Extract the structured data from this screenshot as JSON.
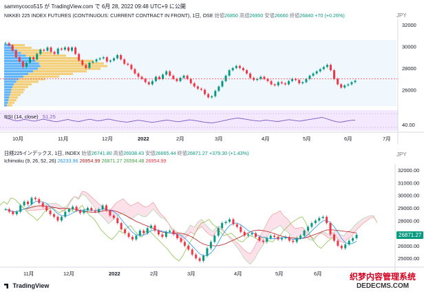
{
  "top_caption": "sammycoco515 が TradingView.com で 6月 28, 2022 09:48 UTC+9 に公開",
  "chart1": {
    "title": "NIKKEI 225 INDEX FUTURES (CONTINUOUS: CURRENT CONTRACT IN FRONT), 1日, OSE",
    "ohlc": {
      "o_label": "始値",
      "o": "26850",
      "h_label": "高値",
      "h": "26950",
      "l_label": "安値",
      "l": "26660",
      "c_label": "終値",
      "c": "26840",
      "chg": "+70 (+0.26%)"
    },
    "currency": "JPY",
    "yticks": [
      "32000",
      "30000",
      "28000",
      "26000"
    ],
    "ylim": [
      24500,
      32500
    ],
    "dotted_level": 27000,
    "rsi_label": "RSI (14, close)",
    "rsi_value": "51.25",
    "rsi_tick": "40.00",
    "xticks": [
      "10月",
      "11月",
      "12月",
      "2022",
      "2月",
      "3月",
      "4月",
      "5月",
      "6月",
      "7月"
    ]
  },
  "chart2": {
    "title": "日経225インデックス, 1日, INDEX",
    "ohlc": {
      "o_label": "始値",
      "o": "26741.80",
      "h_label": "高値",
      "h": "26938.43",
      "l_label": "安値",
      "l": "26665.44",
      "c_label": "終値",
      "c": "26871.27",
      "chg": "+379.30 (+1.43%)"
    },
    "ichimoku_label": "Ichimoku (9, 26, 52, 26)",
    "ichimoku_values": [
      "26233.96",
      "26954.99",
      "26871.27",
      "26594.48",
      "26954.99"
    ],
    "ichimoku_colors": [
      "#2196f3",
      "#b71c1c",
      "#43a047",
      "#43a047",
      "#f23645"
    ],
    "currency": "JPY",
    "yticks": [
      "32000.00",
      "31000.00",
      "30000.00",
      "29000.00",
      "28000.00",
      "27000.00",
      "26000.00",
      "25000.00"
    ],
    "ylim": [
      24300,
      32500
    ],
    "last_price": "26871.27",
    "xticks": [
      "11月",
      "12月",
      "2022",
      "2月",
      "3月",
      "4月",
      "5月",
      "6月"
    ]
  },
  "footer_logo": "TradingView",
  "watermark": {
    "line1": "织梦内容管理系统",
    "line2": "DEDECMS.COM"
  },
  "chart_data": [
    {
      "type": "line",
      "title": "NIKKEI 225 INDEX FUTURES (CONTINUOUS: CURRENT CONTRACT IN FRONT), 1日, OSE",
      "series": [
        {
          "name": "",
          "values": [
            30300,
            30100,
            29600,
            29000,
            28600,
            28100,
            28500,
            29000,
            28800,
            29300,
            29700,
            29600,
            29900,
            29500,
            29300,
            29800,
            29700,
            29900,
            29600,
            29900,
            29300,
            28700,
            28300,
            28000,
            28500,
            28600,
            28800,
            28900,
            29000,
            28600,
            28700,
            28900,
            29200,
            28800,
            28400,
            28300,
            27900,
            27500,
            27200,
            27000,
            26700,
            26500,
            26800,
            27200,
            27000,
            27400,
            27700,
            27300,
            27000,
            26800,
            27100,
            27300,
            27000,
            26600,
            26300,
            26100,
            26000,
            25600,
            25300,
            25400,
            25900,
            26300,
            26800,
            27300,
            27800,
            28000,
            28200,
            28000,
            27800,
            27500,
            27100,
            26900,
            27000,
            27200,
            27000,
            26800,
            26500,
            26400,
            26700,
            26600,
            26500,
            26800,
            27000,
            26900,
            26600,
            26700,
            27000,
            27300,
            27500,
            27700,
            27900,
            28100,
            28300,
            27800,
            27000,
            26500,
            26200,
            26400,
            26500,
            26700,
            26840
          ]
        }
      ],
      "xlabel": "",
      "ylabel": "",
      "ylim": [
        24500,
        32500
      ],
      "xticks": [
        "10月",
        "11月",
        "12月",
        "2022",
        "2月",
        "3月",
        "4月",
        "5月",
        "6月",
        "7月"
      ]
    },
    {
      "type": "line",
      "title": "RSI (14, close)",
      "series": [
        {
          "name": "",
          "values": [
            62,
            58,
            52,
            48,
            50,
            55,
            53,
            49,
            47,
            51,
            56,
            54,
            50,
            46,
            44,
            48,
            52,
            55,
            50,
            47,
            45,
            49,
            53,
            56,
            52,
            48,
            50,
            54,
            57,
            53,
            49,
            46,
            44,
            42,
            45,
            48,
            51,
            49,
            46,
            43,
            41,
            44,
            47,
            50,
            52,
            49,
            46,
            44,
            47,
            50,
            53,
            51,
            48,
            45,
            42,
            40,
            38,
            41,
            44,
            48,
            52,
            56,
            59,
            62,
            60,
            57,
            54,
            51,
            49,
            47,
            50,
            52,
            49,
            47,
            45,
            48,
            51,
            54,
            52,
            49,
            47,
            50,
            53,
            56,
            59,
            62,
            65,
            60,
            54,
            48,
            44,
            42,
            45,
            48,
            51,
            51.25
          ]
        }
      ],
      "ylim": [
        0,
        100
      ]
    },
    {
      "type": "line",
      "title": "日経225インデックス, 1日, INDEX",
      "series": [
        {
          "name": "",
          "values": [
            28900,
            28700,
            28500,
            28700,
            29200,
            29500,
            29300,
            29800,
            29700,
            29400,
            29100,
            28800,
            28500,
            28300,
            28000,
            28300,
            28700,
            28900,
            29100,
            28800,
            28600,
            28800,
            29000,
            28800,
            28700,
            28900,
            29200,
            28800,
            28400,
            28200,
            27800,
            27300,
            27000,
            26700,
            26500,
            26800,
            27200,
            27000,
            27400,
            27600,
            27200,
            26900,
            26700,
            27100,
            27200,
            26900,
            26600,
            26300,
            26000,
            25700,
            25300,
            25000,
            24800,
            25200,
            25800,
            26300,
            26800,
            27400,
            27800,
            27900,
            28100,
            27700,
            27500,
            27100,
            26800,
            26900,
            27000,
            26700,
            26400,
            26300,
            26600,
            26800,
            26700,
            26500,
            26600,
            26700,
            26400,
            26300,
            26600,
            26800,
            27200,
            27500,
            27800,
            28000,
            28200,
            28300,
            27800,
            26900,
            26400,
            26000,
            25800,
            26100,
            26400,
            26600,
            26871.27
          ]
        }
      ],
      "ylim": [
        24300,
        32500
      ],
      "xticks": [
        "11月",
        "12月",
        "2022",
        "2月",
        "3月",
        "4月",
        "5月",
        "6月"
      ]
    }
  ]
}
